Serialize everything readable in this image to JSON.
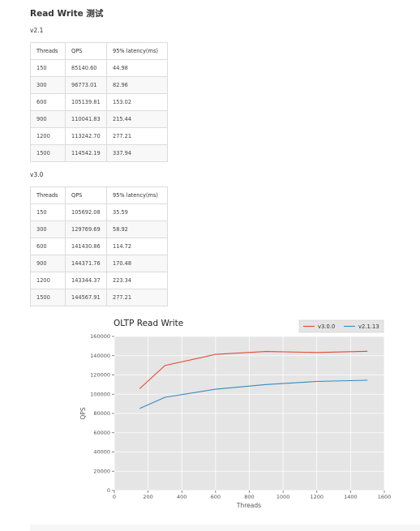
{
  "page": {
    "title": "Read Write 测试"
  },
  "sections": [
    {
      "version": "v2.1",
      "headers": [
        "Threads",
        "QPS",
        "95% latency(ms)"
      ],
      "rows": [
        [
          "150",
          "85140.60",
          "44.98"
        ],
        [
          "300",
          "96773.01",
          "82.96"
        ],
        [
          "600",
          "105139.81",
          "153.02"
        ],
        [
          "900",
          "110041.83",
          "215.44"
        ],
        [
          "1200",
          "113242.70",
          "277.21"
        ],
        [
          "1500",
          "114542.19",
          "337.94"
        ]
      ]
    },
    {
      "version": "v3.0",
      "headers": [
        "Threads",
        "QPS",
        "95% latency(ms)"
      ],
      "rows": [
        [
          "150",
          "105692.08",
          "35.59"
        ],
        [
          "300",
          "129769.69",
          "58.92"
        ],
        [
          "600",
          "141430.86",
          "114.72"
        ],
        [
          "900",
          "144371.76",
          "170.48"
        ],
        [
          "1200",
          "143344.37",
          "223.34"
        ],
        [
          "1500",
          "144567.91",
          "277.21"
        ]
      ]
    }
  ],
  "chart_data": {
    "type": "line",
    "title": "OLTP Read Write",
    "xlabel": "Threads",
    "ylabel": "QPS",
    "xlim": [
      0,
      1600
    ],
    "ylim": [
      0,
      160000
    ],
    "xticks": [
      0,
      200,
      400,
      600,
      800,
      1000,
      1200,
      1400,
      1600
    ],
    "yticks": [
      0,
      20000,
      40000,
      60000,
      80000,
      100000,
      120000,
      140000,
      160000
    ],
    "grid": true,
    "legend_position": "top-right",
    "series": [
      {
        "name": "v3.0.0",
        "color": "#e24a33",
        "x": [
          150,
          300,
          600,
          900,
          1200,
          1500
        ],
        "y": [
          105692.08,
          129769.69,
          141430.86,
          144371.76,
          143344.37,
          144567.91
        ]
      },
      {
        "name": "v2.1.13",
        "color": "#348abd",
        "x": [
          150,
          300,
          600,
          900,
          1200,
          1500
        ],
        "y": [
          85140.6,
          96773.01,
          105139.81,
          110041.83,
          113242.7,
          114542.19
        ]
      }
    ]
  }
}
